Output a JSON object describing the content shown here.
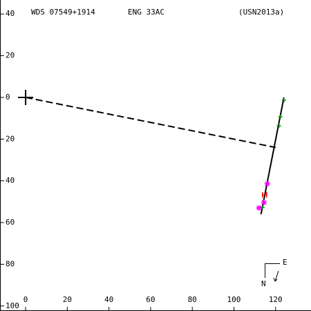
{
  "chart_data": {
    "type": "scatter",
    "title": "WDS 07549+1914",
    "subtitle": "ENG  33AC",
    "reference": "(USN2013a)",
    "compass": {
      "north": "N",
      "east": "E"
    },
    "xlim": [
      -12.3,
      137
    ],
    "ylim": [
      -102.4,
      46.7
    ],
    "xticks": [
      0,
      20,
      40,
      60,
      80,
      100,
      120
    ],
    "yticks": [
      40,
      20,
      0,
      {
        "value": -20,
        "label": "20"
      },
      {
        "value": -40,
        "label": "40"
      },
      {
        "value": -60,
        "label": "60"
      },
      {
        "value": -80,
        "label": "80"
      },
      {
        "value": -100,
        "label": "100"
      }
    ],
    "primary": {
      "x": 0,
      "y": 0
    },
    "lines": [
      {
        "x": [
          0,
          120
        ],
        "y": [
          0,
          -24
        ],
        "dashed": true,
        "color": "#000000"
      },
      {
        "x": [
          113,
          124
        ],
        "y": [
          -56,
          0
        ],
        "dashed": false,
        "color": "#000000"
      }
    ],
    "series": [
      {
        "marker": "+",
        "color": "#008000",
        "x": [
          124,
          122.3,
          121.6,
          113.7
        ],
        "y": [
          -1.3,
          -9.3,
          -13.6,
          -52.7
        ]
      },
      {
        "marker": "*",
        "color": "#ff00ff",
        "x": [
          116,
          114.4,
          112
        ],
        "y": [
          -41.4,
          -50.4,
          -53
        ]
      },
      {
        "marker": "H",
        "color": "#ff0000",
        "x": [
          114.7
        ],
        "y": [
          -46.7
        ]
      }
    ]
  }
}
